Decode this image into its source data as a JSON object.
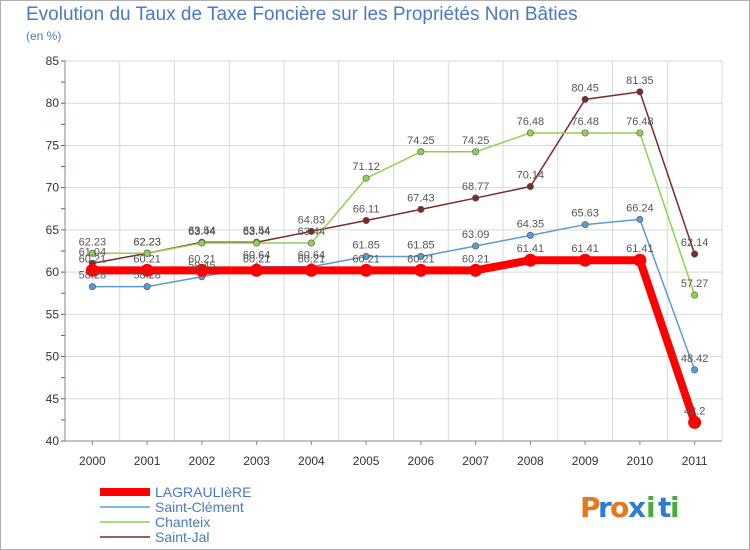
{
  "title": "Evolution du Taux de Taxe Foncière sur les Propriétés Non Bâties",
  "subtitle": "(en %)",
  "logo": {
    "text": "Proxiti",
    "letters": [
      "P",
      "r",
      "o",
      "x",
      "i",
      "t",
      "i"
    ],
    "colors": [
      "#e8761a",
      "#2e7bd6",
      "#e8761a",
      "#2e7bd6",
      "#4caa3c",
      "#2e7bd6",
      "#4caa3c"
    ]
  },
  "chart_data": {
    "type": "line",
    "title": "Evolution du Taux de Taxe Foncière sur les Propriétés Non Bâties",
    "ylabel": "(en %)",
    "xlabel": "",
    "ylim": [
      40,
      85
    ],
    "yticks": [
      40,
      45,
      50,
      55,
      60,
      65,
      70,
      75,
      80,
      85
    ],
    "categories": [
      "2000",
      "2001",
      "2002",
      "2003",
      "2004",
      "2005",
      "2006",
      "2007",
      "2008",
      "2009",
      "2010",
      "2011"
    ],
    "grid": true,
    "legend": "bottom-left",
    "series": [
      {
        "name": "LAGRAULIèRE",
        "color": "#ff0000",
        "values": [
          60.21,
          60.21,
          60.21,
          60.21,
          60.21,
          60.21,
          60.21,
          60.21,
          61.41,
          61.41,
          61.41,
          42.2
        ],
        "labels": [
          "60.21",
          "60.21",
          "60.21",
          "60.21",
          "60.21",
          "60.21",
          "60.21",
          "60.21",
          "61.41",
          "61.41",
          "61.41",
          "42.2"
        ]
      },
      {
        "name": "Saint-Clément",
        "color": "#5b9bd5",
        "values": [
          58.28,
          58.28,
          59.45,
          60.64,
          60.64,
          61.85,
          61.85,
          63.09,
          64.35,
          65.63,
          66.24,
          48.42
        ],
        "labels": [
          "58.28",
          "58.28",
          "59.45",
          "60.64",
          "60.64",
          "61.85",
          "61.85",
          "63.09",
          "64.35",
          "65.63",
          "66.24",
          "48.42"
        ]
      },
      {
        "name": "Chanteix",
        "color": "#92d050",
        "values": [
          62.23,
          62.23,
          63.44,
          63.44,
          63.44,
          71.12,
          74.25,
          74.25,
          76.48,
          76.48,
          76.48,
          57.27
        ],
        "labels": [
          "62.23",
          "62.23",
          "63.44",
          "63.44",
          "63.44",
          "71.12",
          "74.25",
          "74.25",
          "76.48",
          "76.48",
          "76.48",
          "57.27"
        ]
      },
      {
        "name": "Saint-Jal",
        "color": "#7b2a2a",
        "values": [
          61.04,
          62.23,
          63.54,
          63.54,
          64.83,
          66.11,
          67.43,
          68.77,
          70.14,
          80.45,
          81.35,
          62.14
        ],
        "labels": [
          "61.04",
          "62.23",
          "63.54",
          "63.54",
          "64.83",
          "66.11",
          "67.43",
          "68.77",
          "70.14",
          "80.45",
          "81.35",
          "62.14"
        ]
      }
    ]
  }
}
